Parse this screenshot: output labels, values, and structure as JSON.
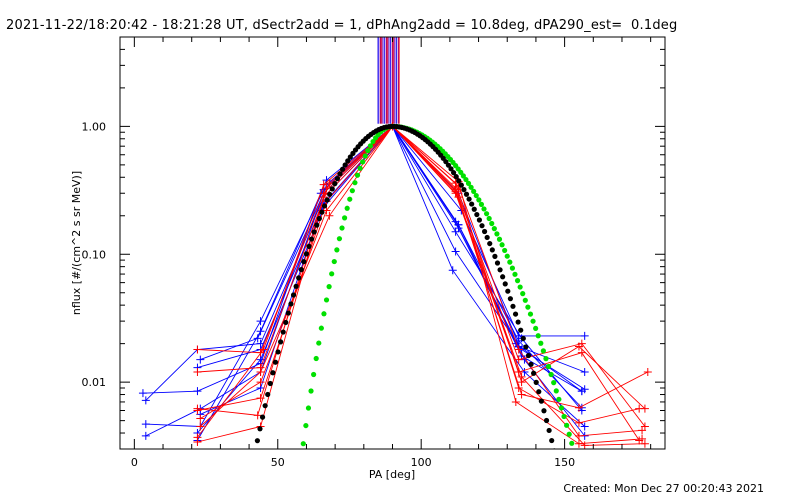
{
  "header": {
    "title": "2021-11-22/18:20:42 - 18:21:28 UT, dSectr2add = 1, dPhAng2add = 10.8deg, dPA290_est=  0.1deg"
  },
  "footer": {
    "created": "Created: Mon Dec 27 00:20:43 2021"
  },
  "chart_data": {
    "type": "scatter",
    "xlabel": "PA [deg]",
    "ylabel": "nflux [#/(cm^2 s sr MeV)]",
    "xlim": [
      -5,
      185
    ],
    "ylim": [
      0.003,
      5.0
    ],
    "yscale": "log",
    "x_ticks": [
      0,
      50,
      100,
      150
    ],
    "x_tick_labels": [
      "0",
      "50",
      "100",
      "150"
    ],
    "y_ticks": [
      0.01,
      0.1,
      1.0
    ],
    "y_tick_labels": [
      "0.01",
      "0.10",
      "1.00"
    ],
    "grid": false,
    "colors": {
      "red_traces": "#ff0000",
      "blue_traces": "#0000ff",
      "green_fit": "#00e000",
      "black_fit": "#000000",
      "vertical_bar": "#7f00a0"
    },
    "vertical_bar": {
      "x_from": 85,
      "x_to": 92,
      "y_from": 1.05,
      "y_to": 5.0
    },
    "series": [
      {
        "color": "blue",
        "points": [
          [
            3,
            0.0082
          ],
          [
            22,
            0.0085
          ],
          [
            44,
            0.014
          ],
          [
            65,
            0.3
          ],
          [
            90,
            1.0
          ],
          [
            113,
            0.17
          ],
          [
            133,
            0.02
          ],
          [
            156,
            0.0085
          ]
        ]
      },
      {
        "color": "blue",
        "points": [
          [
            4,
            0.0047
          ],
          [
            23,
            0.0045
          ],
          [
            44,
            0.03
          ],
          [
            66,
            0.32
          ],
          [
            90,
            1.0
          ],
          [
            112,
            0.105
          ],
          [
            135,
            0.018
          ],
          [
            157,
            0.0088
          ]
        ]
      },
      {
        "color": "blue",
        "points": [
          [
            4,
            0.0038
          ],
          [
            23,
            0.0062
          ],
          [
            44,
            0.012
          ],
          [
            67,
            0.35
          ],
          [
            90,
            1.0
          ],
          [
            111,
            0.075
          ],
          [
            136,
            0.012
          ],
          [
            157,
            0.0045
          ]
        ]
      },
      {
        "color": "blue",
        "points": [
          [
            4,
            0.0072
          ],
          [
            22,
            0.018
          ],
          [
            44,
            0.02
          ],
          [
            66,
            0.28
          ],
          [
            90,
            1.0
          ],
          [
            114,
            0.22
          ],
          [
            134,
            0.023
          ],
          [
            157,
            0.023
          ]
        ]
      },
      {
        "color": "blue",
        "points": [
          [
            22,
            0.0035
          ],
          [
            44,
            0.025
          ],
          [
            67,
            0.38
          ],
          [
            90,
            1.0
          ],
          [
            113,
            0.3
          ],
          [
            136,
            0.015
          ],
          [
            157,
            0.0038
          ]
        ]
      },
      {
        "color": "blue",
        "points": [
          [
            22,
            0.013
          ],
          [
            44,
            0.018
          ],
          [
            66,
            0.25
          ],
          [
            90,
            1.0
          ],
          [
            113,
            0.17
          ],
          [
            134,
            0.021
          ],
          [
            156,
            0.0063
          ]
        ]
      },
      {
        "color": "blue",
        "points": [
          [
            23,
            0.0056
          ],
          [
            44,
            0.009
          ],
          [
            65,
            0.22
          ],
          [
            90,
            1.0
          ],
          [
            112,
            0.18
          ],
          [
            135,
            0.016
          ],
          [
            156,
            0.0085
          ]
        ]
      },
      {
        "color": "blue",
        "points": [
          [
            23,
            0.015
          ],
          [
            43,
            0.022
          ],
          [
            66,
            0.3
          ],
          [
            90,
            1.0
          ],
          [
            113,
            0.16
          ],
          [
            134,
            0.019
          ],
          [
            157,
            0.012
          ]
        ]
      },
      {
        "color": "blue",
        "points": [
          [
            22,
            0.004
          ],
          [
            44,
            0.015
          ],
          [
            67,
            0.26
          ],
          [
            90,
            1.0
          ],
          [
            112,
            0.15
          ],
          [
            135,
            0.022
          ],
          [
            156,
            0.006
          ]
        ]
      },
      {
        "color": "red",
        "points": [
          [
            22,
            0.012
          ],
          [
            44,
            0.013
          ],
          [
            68,
            0.36
          ],
          [
            90,
            1.0
          ],
          [
            112,
            0.36
          ],
          [
            135,
            0.01
          ],
          [
            155,
            0.019
          ],
          [
            178,
            0.0062
          ]
        ]
      },
      {
        "color": "red",
        "points": [
          [
            22,
            0.018
          ],
          [
            44,
            0.017
          ],
          [
            66,
            0.3
          ],
          [
            90,
            1.0
          ],
          [
            113,
            0.34
          ],
          [
            134,
            0.018
          ],
          [
            155,
            0.0038
          ],
          [
            177,
            0.0042
          ]
        ]
      },
      {
        "color": "red",
        "points": [
          [
            22,
            0.0034
          ],
          [
            44,
            0.0045
          ],
          [
            67,
            0.33
          ],
          [
            90,
            1.0
          ],
          [
            112,
            0.32
          ],
          [
            135,
            0.008
          ],
          [
            155,
            0.0063
          ],
          [
            179,
            0.012
          ]
        ]
      },
      {
        "color": "red",
        "points": [
          [
            22,
            0.006
          ],
          [
            44,
            0.0075
          ],
          [
            67,
            0.26
          ],
          [
            90,
            1.0
          ],
          [
            112,
            0.3
          ],
          [
            134,
            0.012
          ],
          [
            156,
            0.017
          ],
          [
            176,
            0.0035
          ]
        ]
      },
      {
        "color": "red",
        "points": [
          [
            23,
            0.0045
          ],
          [
            44,
            0.012
          ],
          [
            68,
            0.2
          ],
          [
            90,
            1.0
          ],
          [
            113,
            0.37
          ],
          [
            133,
            0.007
          ],
          [
            155,
            0.0033
          ],
          [
            177,
            0.0036
          ]
        ]
      },
      {
        "color": "red",
        "points": [
          [
            22,
            0.0037
          ],
          [
            45,
            0.018
          ],
          [
            66,
            0.35
          ],
          [
            90,
            1.0
          ],
          [
            112,
            0.33
          ],
          [
            134,
            0.015
          ],
          [
            156,
            0.02
          ],
          [
            178,
            0.0045
          ]
        ]
      },
      {
        "color": "red",
        "points": [
          [
            23,
            0.0052
          ],
          [
            44,
            0.01
          ],
          [
            67,
            0.22
          ],
          [
            90,
            1.0
          ],
          [
            113,
            0.28
          ],
          [
            134,
            0.009
          ],
          [
            155,
            0.0048
          ],
          [
            176,
            0.0062
          ]
        ]
      },
      {
        "color": "red",
        "points": [
          [
            22,
            0.0062
          ],
          [
            43,
            0.0055
          ],
          [
            66,
            0.28
          ],
          [
            90,
            1.0
          ],
          [
            112,
            0.31
          ],
          [
            135,
            0.011
          ],
          [
            157,
            0.0032
          ],
          [
            178,
            0.0033
          ]
        ]
      }
    ],
    "fits": [
      {
        "name": "",
        "color": "green",
        "x_from": 49,
        "x_to": 158,
        "peak_x": 90,
        "sigma_left": 9.2,
        "sigma_right": 18.5,
        "y_peak": 1.0
      },
      {
        "name": "",
        "color": "black",
        "x_from": 42,
        "x_to": 150,
        "peak_x": 90,
        "sigma_left": 14.0,
        "sigma_right": 16.5,
        "y_peak": 1.0
      }
    ]
  }
}
